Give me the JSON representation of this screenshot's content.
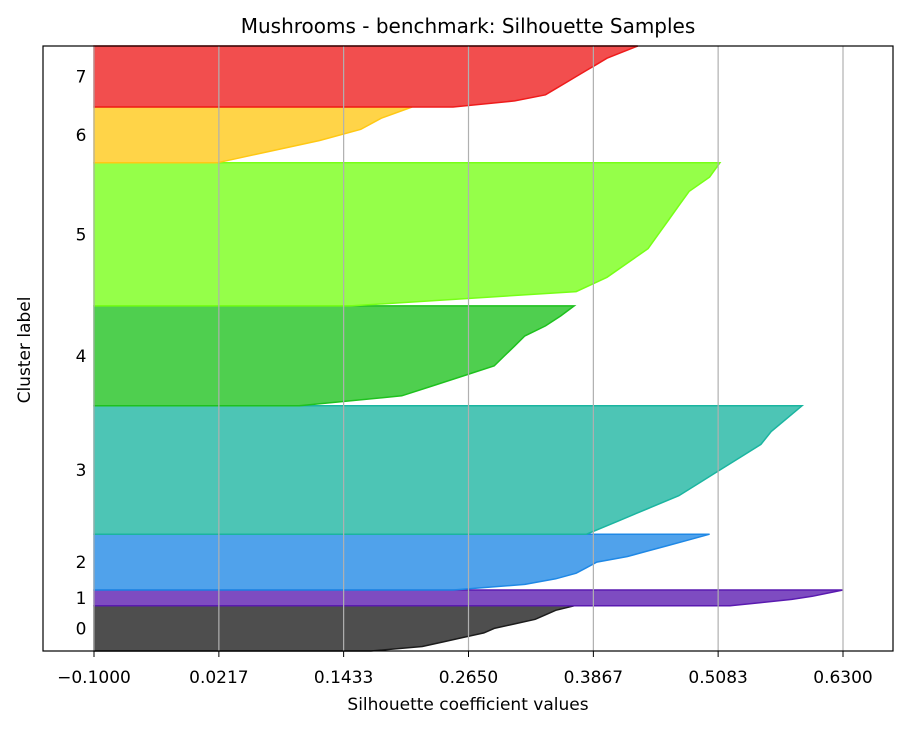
{
  "chart_data": {
    "type": "area",
    "title": "Mushrooms - benchmark: Silhouette Samples",
    "xlabel": "Silhouette coefficient values",
    "ylabel": "Cluster label",
    "xlim": [
      -0.1,
      0.63
    ],
    "xticks": [
      -0.1,
      0.0217,
      0.1433,
      0.265,
      0.3867,
      0.5083,
      0.63
    ],
    "xtick_labels": [
      "−0.1000",
      "0.0217",
      "0.1433",
      "0.2650",
      "0.3867",
      "0.5083",
      "0.6300"
    ],
    "grid": "vertical",
    "clusters": [
      {
        "label": "0",
        "color": "#1c1c1c",
        "y_range": [
          0,
          43
        ],
        "profile": [
          [
            0,
            0.17
          ],
          [
            0.1,
            0.22
          ],
          [
            0.2,
            0.24
          ],
          [
            0.3,
            0.26
          ],
          [
            0.4,
            0.28
          ],
          [
            0.5,
            0.29
          ],
          [
            0.6,
            0.31
          ],
          [
            0.7,
            0.33
          ],
          [
            0.8,
            0.34
          ],
          [
            0.9,
            0.35
          ],
          [
            1,
            0.368
          ]
        ]
      },
      {
        "label": "1",
        "color": "#5a1ab0",
        "y_range": [
          43,
          58
        ],
        "profile": [
          [
            0,
            0.52
          ],
          [
            0.2,
            0.55
          ],
          [
            0.4,
            0.58
          ],
          [
            0.6,
            0.6
          ],
          [
            0.8,
            0.615
          ],
          [
            1,
            0.63
          ]
        ]
      },
      {
        "label": "2",
        "color": "#1f88e5",
        "y_range": [
          58,
          111
        ],
        "profile": [
          [
            0,
            0.25
          ],
          [
            0.1,
            0.32
          ],
          [
            0.2,
            0.35
          ],
          [
            0.3,
            0.37
          ],
          [
            0.4,
            0.38
          ],
          [
            0.5,
            0.39
          ],
          [
            0.6,
            0.42
          ],
          [
            0.7,
            0.44
          ],
          [
            0.8,
            0.46
          ],
          [
            0.9,
            0.48
          ],
          [
            1,
            0.5
          ]
        ]
      },
      {
        "label": "3",
        "color": "#1bb5a0",
        "y_range": [
          111,
          233
        ],
        "profile": [
          [
            0,
            0.38
          ],
          [
            0.1,
            0.41
          ],
          [
            0.2,
            0.44
          ],
          [
            0.3,
            0.47
          ],
          [
            0.4,
            0.49
          ],
          [
            0.5,
            0.51
          ],
          [
            0.6,
            0.53
          ],
          [
            0.7,
            0.55
          ],
          [
            0.8,
            0.56
          ],
          [
            0.9,
            0.575
          ],
          [
            1,
            0.59
          ]
        ]
      },
      {
        "label": "4",
        "color": "#1ec11e",
        "y_range": [
          233,
          328
        ],
        "profile": [
          [
            0,
            0.1
          ],
          [
            0.1,
            0.2
          ],
          [
            0.2,
            0.23
          ],
          [
            0.3,
            0.26
          ],
          [
            0.4,
            0.29
          ],
          [
            0.5,
            0.3
          ],
          [
            0.6,
            0.31
          ],
          [
            0.7,
            0.32
          ],
          [
            0.8,
            0.34
          ],
          [
            0.9,
            0.355
          ],
          [
            1,
            0.368
          ]
        ]
      },
      {
        "label": "5",
        "color": "#77ff16",
        "y_range": [
          328,
          464
        ],
        "profile": [
          [
            0,
            0.15
          ],
          [
            0.1,
            0.37
          ],
          [
            0.2,
            0.4
          ],
          [
            0.3,
            0.42
          ],
          [
            0.4,
            0.44
          ],
          [
            0.5,
            0.45
          ],
          [
            0.6,
            0.46
          ],
          [
            0.7,
            0.47
          ],
          [
            0.8,
            0.48
          ],
          [
            0.9,
            0.5
          ],
          [
            1,
            0.51
          ]
        ]
      },
      {
        "label": "6",
        "color": "#ffc814",
        "y_range": [
          464,
          517
        ],
        "profile": [
          [
            0,
            0.02
          ],
          [
            0.2,
            0.07
          ],
          [
            0.4,
            0.12
          ],
          [
            0.6,
            0.16
          ],
          [
            0.8,
            0.18
          ],
          [
            1,
            0.21
          ]
        ]
      },
      {
        "label": "7",
        "color": "#ee1c1c",
        "y_range": [
          517,
          575
        ],
        "profile": [
          [
            0,
            0.25
          ],
          [
            0.1,
            0.31
          ],
          [
            0.2,
            0.34
          ],
          [
            0.3,
            0.35
          ],
          [
            0.4,
            0.36
          ],
          [
            0.5,
            0.37
          ],
          [
            0.6,
            0.38
          ],
          [
            0.7,
            0.39
          ],
          [
            0.8,
            0.4
          ],
          [
            0.9,
            0.415
          ],
          [
            1,
            0.43
          ]
        ]
      }
    ]
  }
}
